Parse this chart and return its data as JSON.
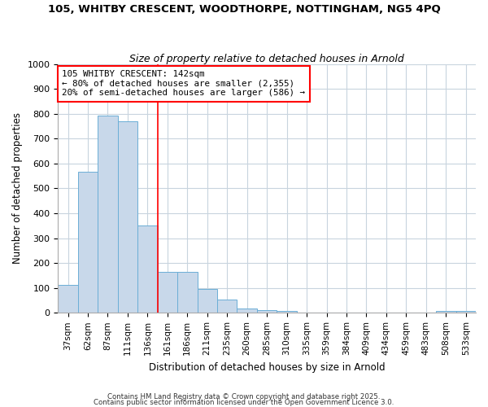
{
  "title_line1": "105, WHITBY CRESCENT, WOODTHORPE, NOTTINGHAM, NG5 4PQ",
  "title_line2": "Size of property relative to detached houses in Arnold",
  "xlabel": "Distribution of detached houses by size in Arnold",
  "ylabel": "Number of detached properties",
  "bar_labels": [
    "37sqm",
    "62sqm",
    "87sqm",
    "111sqm",
    "136sqm",
    "161sqm",
    "186sqm",
    "211sqm",
    "235sqm",
    "260sqm",
    "285sqm",
    "310sqm",
    "335sqm",
    "359sqm",
    "384sqm",
    "409sqm",
    "434sqm",
    "459sqm",
    "483sqm",
    "508sqm",
    "533sqm"
  ],
  "bar_values": [
    112,
    567,
    793,
    770,
    350,
    165,
    165,
    95,
    52,
    17,
    12,
    8,
    0,
    0,
    0,
    0,
    0,
    0,
    0,
    8,
    8
  ],
  "bar_color": "#c8d8ea",
  "bar_edge_color": "#6baed6",
  "vline_index": 4,
  "vline_color": "red",
  "annotation_text": "105 WHITBY CRESCENT: 142sqm\n← 80% of detached houses are smaller (2,355)\n20% of semi-detached houses are larger (586) →",
  "annotation_box_color": "white",
  "annotation_box_edge_color": "red",
  "ylim": [
    0,
    1000
  ],
  "yticks": [
    0,
    100,
    200,
    300,
    400,
    500,
    600,
    700,
    800,
    900,
    1000
  ],
  "grid_color": "#c8d4de",
  "background_color": "#ffffff",
  "plot_bg_color": "#ffffff",
  "footer_line1": "Contains HM Land Registry data © Crown copyright and database right 2025.",
  "footer_line2": "Contains public sector information licensed under the Open Government Licence 3.0."
}
